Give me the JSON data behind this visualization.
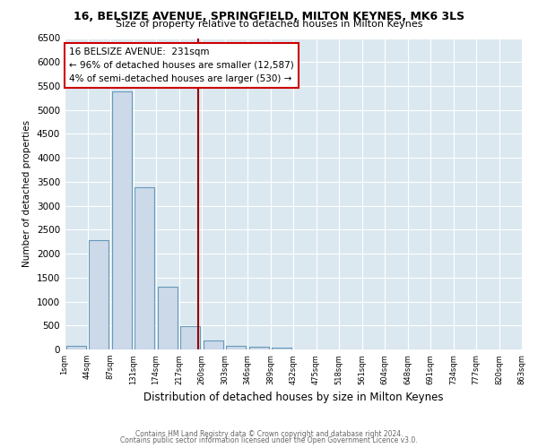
{
  "title1": "16, BELSIZE AVENUE, SPRINGFIELD, MILTON KEYNES, MK6 3LS",
  "title2": "Size of property relative to detached houses in Milton Keynes",
  "xlabel": "Distribution of detached houses by size in Milton Keynes",
  "ylabel": "Number of detached properties",
  "bins": [
    "1sqm",
    "44sqm",
    "87sqm",
    "131sqm",
    "174sqm",
    "217sqm",
    "260sqm",
    "303sqm",
    "346sqm",
    "389sqm",
    "432sqm",
    "475sqm",
    "518sqm",
    "561sqm",
    "604sqm",
    "648sqm",
    "691sqm",
    "734sqm",
    "777sqm",
    "820sqm",
    "863sqm"
  ],
  "values": [
    70,
    2280,
    5380,
    3380,
    1310,
    490,
    185,
    80,
    50,
    40,
    0,
    0,
    0,
    0,
    0,
    0,
    0,
    0,
    0,
    0
  ],
  "bar_color": "#ccd9e8",
  "bar_edge_color": "#6699bb",
  "vline_color": "#990000",
  "annotation_text": "16 BELSIZE AVENUE:  231sqm\n← 96% of detached houses are smaller (12,587)\n4% of semi-detached houses are larger (530) →",
  "annotation_box_color": "white",
  "annotation_box_edge": "#cc0000",
  "ylim": [
    0,
    6500
  ],
  "yticks": [
    0,
    500,
    1000,
    1500,
    2000,
    2500,
    3000,
    3500,
    4000,
    4500,
    5000,
    5500,
    6000,
    6500
  ],
  "footer1": "Contains HM Land Registry data © Crown copyright and database right 2024.",
  "footer2": "Contains public sector information licensed under the Open Government Licence v3.0.",
  "bg_color": "#ffffff",
  "plot_bg_color": "#dce8f0"
}
